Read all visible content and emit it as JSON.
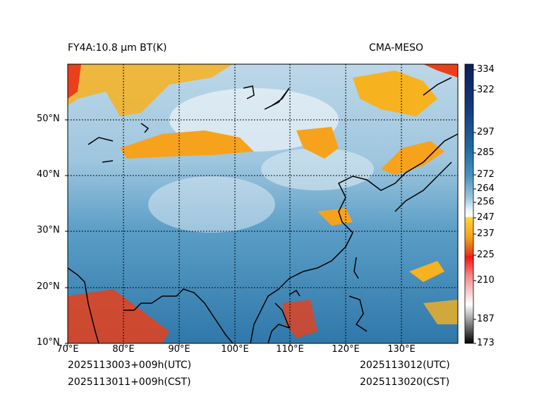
{
  "title_left": "FY4A:10.8 µm BT(K)",
  "title_right": "CMA-MESO",
  "footer": {
    "utc_left": "2025113003+009h(UTC)",
    "cst_left": "2025113011+009h(CST)",
    "utc_right": "2025113012(UTC)",
    "cst_right": "2025113020(CST)"
  },
  "lat_labels": [
    "50°N",
    "40°N",
    "30°N",
    "20°N",
    "10°N"
  ],
  "lon_labels": [
    "70°E",
    "80°E",
    "90°E",
    "100°E",
    "110°E",
    "120°E",
    "130°E"
  ],
  "colorbar_labels": [
    "334",
    "322",
    "297",
    "285",
    "272",
    "264",
    "256",
    "247",
    "237",
    "225",
    "210",
    "187",
    "173"
  ],
  "colors": {
    "cold_cloud": "#e8401a",
    "mid_cloud": "#f7b21f",
    "clear": "#6aa8cc",
    "ocean": "#2a6f9e"
  }
}
